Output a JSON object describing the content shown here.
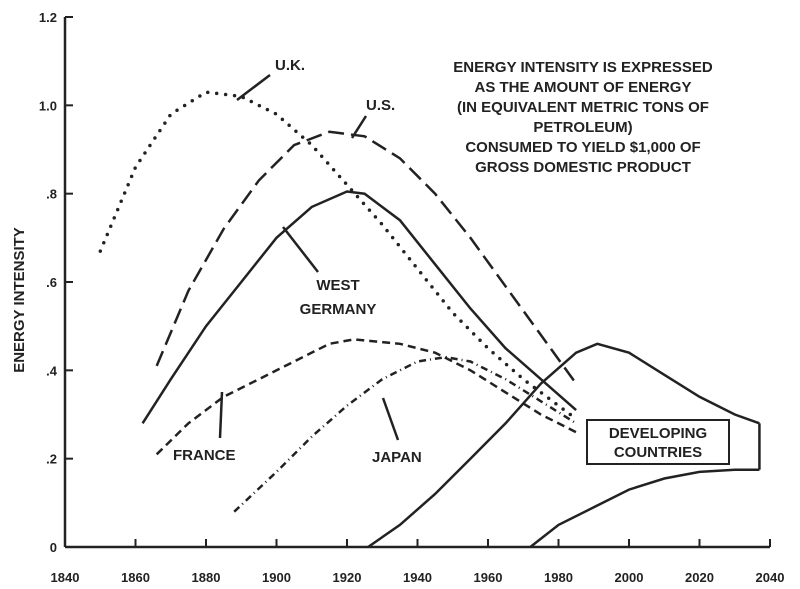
{
  "chart_data": {
    "type": "line",
    "ylabel": "ENERGY INTENSITY",
    "xlim": [
      1840,
      2040
    ],
    "ylim": [
      0,
      1.2
    ],
    "x_ticks": [
      "1840",
      "1860",
      "1880",
      "1900",
      "1920",
      "1940",
      "1960",
      "1980",
      "2000",
      "2020",
      "2040"
    ],
    "y_ticks": [
      "0",
      ".2",
      ".4",
      ".6",
      ".8",
      "1.0",
      "1.2"
    ],
    "annotation": [
      "ENERGY INTENSITY IS EXPRESSED",
      "AS THE AMOUNT OF ENERGY",
      "(IN EQUIVALENT METRIC TONS OF",
      "PETROLEUM)",
      "CONSUMED TO YIELD $1,000 OF",
      "GROSS DOMESTIC PRODUCT"
    ],
    "series": [
      {
        "name": "U.K.",
        "style": "dotted",
        "x": [
          1850,
          1860,
          1870,
          1880,
          1890,
          1900,
          1910,
          1920,
          1930,
          1940,
          1950,
          1960,
          1970,
          1985
        ],
        "y": [
          0.67,
          0.86,
          0.98,
          1.03,
          1.02,
          0.98,
          0.91,
          0.82,
          0.73,
          0.63,
          0.53,
          0.45,
          0.38,
          0.29
        ]
      },
      {
        "name": "U.S.",
        "style": "dashed",
        "x": [
          1866,
          1875,
          1885,
          1895,
          1905,
          1915,
          1925,
          1935,
          1945,
          1955,
          1965,
          1975,
          1985
        ],
        "y": [
          0.41,
          0.58,
          0.72,
          0.83,
          0.91,
          0.94,
          0.93,
          0.88,
          0.8,
          0.7,
          0.59,
          0.48,
          0.37
        ]
      },
      {
        "name": "WEST GERMANY",
        "style": "solid",
        "x": [
          1862,
          1870,
          1880,
          1890,
          1900,
          1910,
          1920,
          1925,
          1935,
          1945,
          1955,
          1965,
          1975,
          1985
        ],
        "y": [
          0.28,
          0.38,
          0.5,
          0.6,
          0.7,
          0.77,
          0.805,
          0.8,
          0.74,
          0.64,
          0.54,
          0.45,
          0.38,
          0.31
        ]
      },
      {
        "name": "FRANCE",
        "style": "dashed-short",
        "x": [
          1866,
          1875,
          1885,
          1895,
          1905,
          1915,
          1922,
          1935,
          1945,
          1955,
          1965,
          1975,
          1985
        ],
        "y": [
          0.21,
          0.28,
          0.34,
          0.38,
          0.42,
          0.46,
          0.47,
          0.46,
          0.44,
          0.4,
          0.35,
          0.3,
          0.26
        ]
      },
      {
        "name": "JAPAN",
        "style": "dash-dot",
        "x": [
          1888,
          1900,
          1910,
          1920,
          1930,
          1940,
          1948,
          1955,
          1965,
          1975,
          1985
        ],
        "y": [
          0.08,
          0.17,
          0.25,
          0.32,
          0.38,
          0.42,
          0.43,
          0.42,
          0.38,
          0.33,
          0.28
        ]
      },
      {
        "name": "DEVELOPING COUNTRIES",
        "style": "band",
        "upper": {
          "x": [
            1926,
            1935,
            1945,
            1955,
            1965,
            1975,
            1985,
            1991,
            2000,
            2010,
            2020,
            2030,
            2037
          ],
          "y": [
            0.0,
            0.05,
            0.12,
            0.2,
            0.28,
            0.37,
            0.44,
            0.46,
            0.44,
            0.39,
            0.34,
            0.3,
            0.28
          ]
        },
        "lower": {
          "x": [
            1972,
            1980,
            1990,
            2000,
            2010,
            2020,
            2030,
            2037
          ],
          "y": [
            0.0,
            0.05,
            0.09,
            0.13,
            0.155,
            0.17,
            0.175,
            0.175
          ]
        }
      }
    ]
  }
}
